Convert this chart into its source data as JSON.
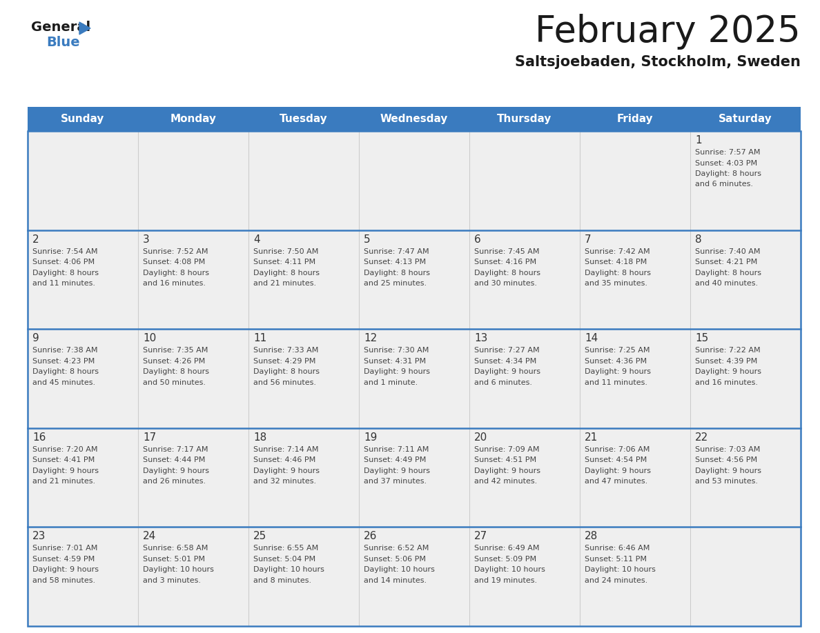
{
  "title": "February 2025",
  "subtitle": "Saltsjoebaden, Stockholm, Sweden",
  "header_bg": "#3a7bbf",
  "header_text": "#ffffff",
  "day_names": [
    "Sunday",
    "Monday",
    "Tuesday",
    "Wednesday",
    "Thursday",
    "Friday",
    "Saturday"
  ],
  "bg_color": "#ffffff",
  "cell_bg": "#efefef",
  "border_color": "#3a7bbf",
  "row_border_color": "#3a7bbf",
  "col_border_color": "#cccccc",
  "day_num_color": "#333333",
  "text_color": "#444444",
  "calendar": [
    [
      null,
      null,
      null,
      null,
      null,
      null,
      {
        "day": 1,
        "sunrise": "7:57 AM",
        "sunset": "4:03 PM",
        "daylight": "8 hours and 6 minutes."
      }
    ],
    [
      {
        "day": 2,
        "sunrise": "7:54 AM",
        "sunset": "4:06 PM",
        "daylight": "8 hours and 11 minutes."
      },
      {
        "day": 3,
        "sunrise": "7:52 AM",
        "sunset": "4:08 PM",
        "daylight": "8 hours and 16 minutes."
      },
      {
        "day": 4,
        "sunrise": "7:50 AM",
        "sunset": "4:11 PM",
        "daylight": "8 hours and 21 minutes."
      },
      {
        "day": 5,
        "sunrise": "7:47 AM",
        "sunset": "4:13 PM",
        "daylight": "8 hours and 25 minutes."
      },
      {
        "day": 6,
        "sunrise": "7:45 AM",
        "sunset": "4:16 PM",
        "daylight": "8 hours and 30 minutes."
      },
      {
        "day": 7,
        "sunrise": "7:42 AM",
        "sunset": "4:18 PM",
        "daylight": "8 hours and 35 minutes."
      },
      {
        "day": 8,
        "sunrise": "7:40 AM",
        "sunset": "4:21 PM",
        "daylight": "8 hours and 40 minutes."
      }
    ],
    [
      {
        "day": 9,
        "sunrise": "7:38 AM",
        "sunset": "4:23 PM",
        "daylight": "8 hours and 45 minutes."
      },
      {
        "day": 10,
        "sunrise": "7:35 AM",
        "sunset": "4:26 PM",
        "daylight": "8 hours and 50 minutes."
      },
      {
        "day": 11,
        "sunrise": "7:33 AM",
        "sunset": "4:29 PM",
        "daylight": "8 hours and 56 minutes."
      },
      {
        "day": 12,
        "sunrise": "7:30 AM",
        "sunset": "4:31 PM",
        "daylight": "9 hours and 1 minute."
      },
      {
        "day": 13,
        "sunrise": "7:27 AM",
        "sunset": "4:34 PM",
        "daylight": "9 hours and 6 minutes."
      },
      {
        "day": 14,
        "sunrise": "7:25 AM",
        "sunset": "4:36 PM",
        "daylight": "9 hours and 11 minutes."
      },
      {
        "day": 15,
        "sunrise": "7:22 AM",
        "sunset": "4:39 PM",
        "daylight": "9 hours and 16 minutes."
      }
    ],
    [
      {
        "day": 16,
        "sunrise": "7:20 AM",
        "sunset": "4:41 PM",
        "daylight": "9 hours and 21 minutes."
      },
      {
        "day": 17,
        "sunrise": "7:17 AM",
        "sunset": "4:44 PM",
        "daylight": "9 hours and 26 minutes."
      },
      {
        "day": 18,
        "sunrise": "7:14 AM",
        "sunset": "4:46 PM",
        "daylight": "9 hours and 32 minutes."
      },
      {
        "day": 19,
        "sunrise": "7:11 AM",
        "sunset": "4:49 PM",
        "daylight": "9 hours and 37 minutes."
      },
      {
        "day": 20,
        "sunrise": "7:09 AM",
        "sunset": "4:51 PM",
        "daylight": "9 hours and 42 minutes."
      },
      {
        "day": 21,
        "sunrise": "7:06 AM",
        "sunset": "4:54 PM",
        "daylight": "9 hours and 47 minutes."
      },
      {
        "day": 22,
        "sunrise": "7:03 AM",
        "sunset": "4:56 PM",
        "daylight": "9 hours and 53 minutes."
      }
    ],
    [
      {
        "day": 23,
        "sunrise": "7:01 AM",
        "sunset": "4:59 PM",
        "daylight": "9 hours and 58 minutes."
      },
      {
        "day": 24,
        "sunrise": "6:58 AM",
        "sunset": "5:01 PM",
        "daylight": "10 hours and 3 minutes."
      },
      {
        "day": 25,
        "sunrise": "6:55 AM",
        "sunset": "5:04 PM",
        "daylight": "10 hours and 8 minutes."
      },
      {
        "day": 26,
        "sunrise": "6:52 AM",
        "sunset": "5:06 PM",
        "daylight": "10 hours and 14 minutes."
      },
      {
        "day": 27,
        "sunrise": "6:49 AM",
        "sunset": "5:09 PM",
        "daylight": "10 hours and 19 minutes."
      },
      {
        "day": 28,
        "sunrise": "6:46 AM",
        "sunset": "5:11 PM",
        "daylight": "10 hours and 24 minutes."
      },
      null
    ]
  ],
  "logo_general_color": "#1a1a1a",
  "logo_blue_color": "#3a7bbf",
  "logo_triangle_color": "#3a7bbf"
}
